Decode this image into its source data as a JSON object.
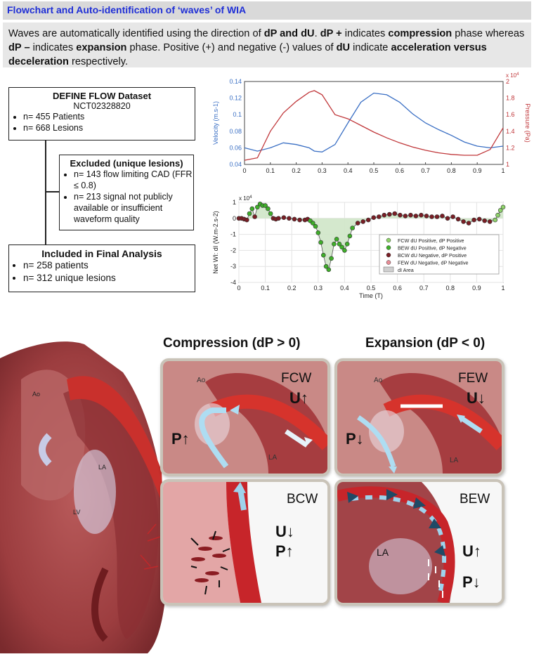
{
  "title": "Flowchart and Auto-identification of ‘waves’ of WIA",
  "description": {
    "t1": "Waves are automatically identified using the direction of ",
    "b1": "dP and dU",
    "t2": ". ",
    "b2": "dP +",
    "t3": " indicates ",
    "b3": "compression",
    "t4": " phase whereas ",
    "b4": "dP –",
    "t5": " indicates ",
    "b5": "expansion",
    "t6": " phase. Positive (+) and negative (-) values of ",
    "b6": "dU",
    "t7": " indicate ",
    "b7": "acceleration versus deceleration",
    "t8": " respectively."
  },
  "flow": {
    "dataset": {
      "title": "DEFINE FLOW Dataset",
      "subtitle": "NCT02328820",
      "items": [
        "n= 455 Patients",
        "n= 668 Lesions"
      ]
    },
    "excluded": {
      "title": "Excluded (unique lesions)",
      "items": [
        "n= 143 flow limiting CAD (FFR ≤ 0.8)",
        "n= 213 signal not publicly available or insufficient waveform quality"
      ]
    },
    "included": {
      "title": "Included in Final Analysis",
      "items": [
        "n= 258 patients",
        "n= 312 unique lesions"
      ]
    }
  },
  "chart_data": [
    {
      "type": "line",
      "x": [
        0,
        0.05,
        0.1,
        0.15,
        0.2,
        0.25,
        0.27,
        0.3,
        0.35,
        0.4,
        0.45,
        0.5,
        0.55,
        0.6,
        0.65,
        0.7,
        0.75,
        0.8,
        0.85,
        0.9,
        0.95,
        1.0
      ],
      "series": [
        {
          "values": [
            0.06,
            0.056,
            0.06,
            0.066,
            0.064,
            0.06,
            0.056,
            0.055,
            0.064,
            0.09,
            0.115,
            0.126,
            0.124,
            0.115,
            0.101,
            0.09,
            0.082,
            0.075,
            0.067,
            0.062,
            0.06,
            0.062
          ],
          "color": "#3a6fc4",
          "axis": "left"
        },
        {
          "values": [
            1.05,
            1.08,
            1.4,
            1.62,
            1.76,
            1.87,
            1.89,
            1.84,
            1.6,
            1.55,
            1.47,
            1.39,
            1.32,
            1.26,
            1.21,
            1.17,
            1.14,
            1.12,
            1.11,
            1.11,
            1.18,
            1.44
          ],
          "color": "#c0373a",
          "axis": "right"
        }
      ],
      "ylabel": "Velocity (m.s-1)",
      "y2label": "Pressure (Pa)",
      "y2_exponent": "x 10",
      "y2_exponent_power": "4",
      "xlim": [
        0,
        1
      ],
      "ylim": [
        0.04,
        0.14
      ],
      "y2lim": [
        1,
        2
      ],
      "xticks": [
        "0",
        "0.1",
        "0.2",
        "0.3",
        "0.4",
        "0.5",
        "0.6",
        "0.7",
        "0.8",
        "0.9",
        "1"
      ],
      "yticks": [
        "0.04",
        "0.06",
        "0.08",
        "0.1",
        "0.12",
        "0.14"
      ],
      "y2ticks": [
        "1",
        "1.2",
        "1.4",
        "1.6",
        "1.8",
        "2"
      ]
    },
    {
      "type": "scatter",
      "xlabel": "Time (T)",
      "ylabel": "Net WI: dI (W.m-2.s-2)",
      "y_exponent": "x 10",
      "y_exponent_power": "4",
      "xlim": [
        0,
        1
      ],
      "ylim": [
        -4,
        1
      ],
      "xticks": [
        "0",
        "0.1",
        "0.2",
        "0.3",
        "0.4",
        "0.5",
        "0.6",
        "0.7",
        "0.8",
        "0.9",
        "1"
      ],
      "yticks": [
        "1",
        "0",
        "-1",
        "-2",
        "-3",
        "-4"
      ],
      "grid": true,
      "legend": [
        {
          "label": "FCW dU Positive, dP Positive",
          "color": "#8fd36b"
        },
        {
          "label": "BEW dU Positive, dP Negative",
          "color": "#3fae2a"
        },
        {
          "label": "BCW dU Negative, dP Positive",
          "color": "#7a1e25"
        },
        {
          "label": "FEW dU Negative, dP Negative",
          "color": "#e88c96"
        },
        {
          "label": "dI Area",
          "color": "#cfcfcf"
        }
      ],
      "points_x": [
        0.0,
        0.01,
        0.02,
        0.03,
        0.04,
        0.05,
        0.06,
        0.07,
        0.08,
        0.09,
        0.1,
        0.11,
        0.12,
        0.13,
        0.14,
        0.15,
        0.17,
        0.19,
        0.21,
        0.23,
        0.25,
        0.26,
        0.27,
        0.28,
        0.29,
        0.3,
        0.31,
        0.32,
        0.33,
        0.34,
        0.35,
        0.36,
        0.37,
        0.38,
        0.39,
        0.4,
        0.41,
        0.42,
        0.43,
        0.45,
        0.47,
        0.49,
        0.51,
        0.53,
        0.55,
        0.57,
        0.59,
        0.61,
        0.63,
        0.65,
        0.67,
        0.69,
        0.71,
        0.73,
        0.75,
        0.77,
        0.79,
        0.81,
        0.83,
        0.85,
        0.87,
        0.89,
        0.91,
        0.93,
        0.95,
        0.97,
        0.98,
        0.99,
        1.0
      ],
      "points_y": [
        0.0,
        0.0,
        -0.05,
        -0.1,
        0.3,
        0.6,
        0.1,
        0.7,
        0.9,
        0.8,
        0.8,
        0.6,
        0.3,
        0.0,
        -0.05,
        0.0,
        0.05,
        0.0,
        -0.05,
        -0.1,
        -0.1,
        -0.05,
        -0.15,
        -0.3,
        -0.5,
        -0.9,
        -1.5,
        -2.3,
        -3.0,
        -3.2,
        -2.5,
        -1.6,
        -1.3,
        -1.6,
        -1.8,
        -2.0,
        -1.6,
        -1.1,
        -0.6,
        -0.3,
        -0.2,
        -0.1,
        0.05,
        0.1,
        0.2,
        0.25,
        0.3,
        0.2,
        0.15,
        0.2,
        0.15,
        0.2,
        0.15,
        0.1,
        0.1,
        0.15,
        0.0,
        0.1,
        -0.05,
        -0.2,
        -0.3,
        -0.1,
        -0.05,
        -0.15,
        -0.2,
        -0.1,
        0.2,
        0.5,
        0.7
      ]
    }
  ],
  "panels": {
    "compression_heading": "Compression (dP > 0)",
    "expansion_heading": "Expansion (dP < 0)",
    "heart": {
      "ao": "Ao",
      "la": "LA",
      "lv": "LV"
    },
    "fcw": {
      "name": "FCW",
      "u": "U↑",
      "p": "P↑",
      "ao": "Ao",
      "la": "LA"
    },
    "few": {
      "name": "FEW",
      "u": "U↓",
      "p": "P↓",
      "ao": "Ao",
      "la": "LA"
    },
    "bcw": {
      "name": "BCW",
      "u": "U↓",
      "p": "P↑"
    },
    "bew": {
      "name": "BEW",
      "u": "U↑",
      "p": "P↓",
      "la": "LA"
    }
  }
}
